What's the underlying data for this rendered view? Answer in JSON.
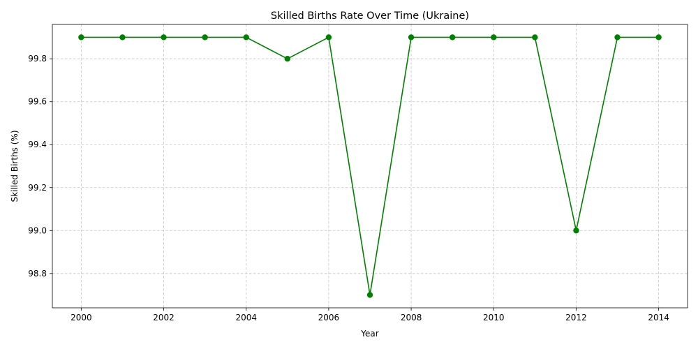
{
  "chart_data": {
    "type": "line",
    "title": "Skilled Births Rate Over Time (Ukraine)",
    "xlabel": "Year",
    "ylabel": "Skilled Births (%)",
    "x": [
      2000,
      2001,
      2002,
      2003,
      2004,
      2005,
      2006,
      2007,
      2008,
      2009,
      2010,
      2011,
      2012,
      2013,
      2014
    ],
    "series": [
      {
        "values": [
          99.9,
          99.9,
          99.9,
          99.9,
          99.9,
          99.8,
          99.9,
          98.7,
          99.9,
          99.9,
          99.9,
          99.9,
          99.0,
          99.9,
          99.9
        ],
        "color": "#008000",
        "marker": "circle"
      }
    ],
    "xlim": [
      1999.3,
      2014.7
    ],
    "ylim": [
      98.64,
      99.96
    ],
    "xticks": [
      "2000",
      "2002",
      "2004",
      "2006",
      "2008",
      "2010",
      "2012",
      "2014"
    ],
    "yticks": [
      "98.8",
      "99.0",
      "99.2",
      "99.4",
      "99.6",
      "99.8"
    ],
    "grid": true
  }
}
